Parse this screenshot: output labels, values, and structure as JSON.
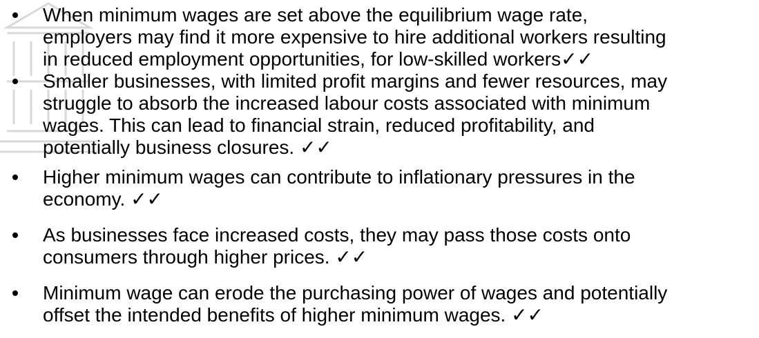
{
  "items": [
    [
      "When minimum wages are set above the equilibrium wage rate,",
      "employers may find it more expensive to hire additional workers resulting",
      "in reduced employment opportunities, for low-skilled workers✓✓"
    ],
    [
      "Smaller businesses, with limited profit margins and fewer resources, may",
      "struggle to absorb the increased labour costs associated with minimum",
      "wages. This can lead to financial strain, reduced profitability, and",
      "potentially business closures. ✓✓"
    ],
    [
      "Higher minimum wages can contribute to inflationary pressures in the",
      "economy. ✓✓"
    ],
    [
      "As businesses face increased costs, they may pass those costs onto",
      "consumers through higher prices. ✓✓"
    ],
    [
      "Minimum wage can erode the purchasing power of wages and potentially",
      "offset the intended benefits of higher minimum wages. ✓✓"
    ]
  ]
}
